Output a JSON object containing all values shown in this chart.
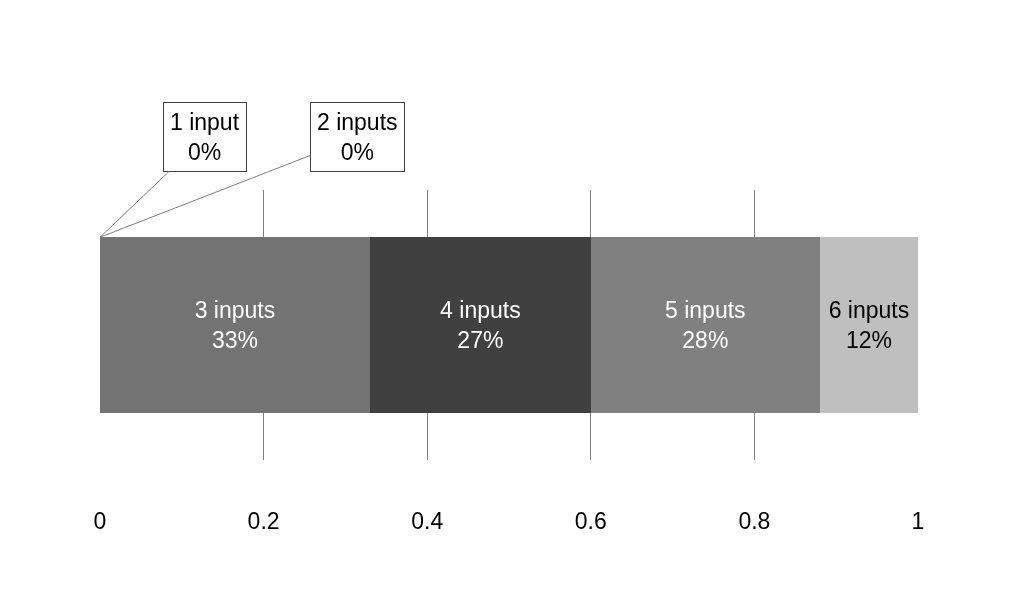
{
  "chart_data": {
    "type": "bar",
    "orientation": "horizontal",
    "stacked": true,
    "categories": [
      null
    ],
    "series": [
      {
        "name": "3 inputs",
        "color": "#737373",
        "values": [
          0.33
        ],
        "value_labels": [
          "33%"
        ]
      },
      {
        "name": "4 inputs",
        "color": "#404040",
        "values": [
          0.27
        ],
        "value_labels": [
          "27%"
        ]
      },
      {
        "name": "5 inputs",
        "color": "#808080",
        "values": [
          0.28
        ],
        "value_labels": [
          "28%"
        ]
      },
      {
        "name": "6 inputs",
        "color": "#bfbfbf",
        "values": [
          0.12
        ],
        "value_labels": [
          "12%"
        ]
      }
    ],
    "annotations": [
      "1 input\n0%",
      "2 inputs\n0%"
    ],
    "xlim": [
      0,
      1
    ],
    "xticks": [
      0,
      0.2,
      0.4,
      0.6,
      0.8,
      1
    ],
    "grid": "x",
    "legend": false,
    "tick_labels": "x"
  }
}
